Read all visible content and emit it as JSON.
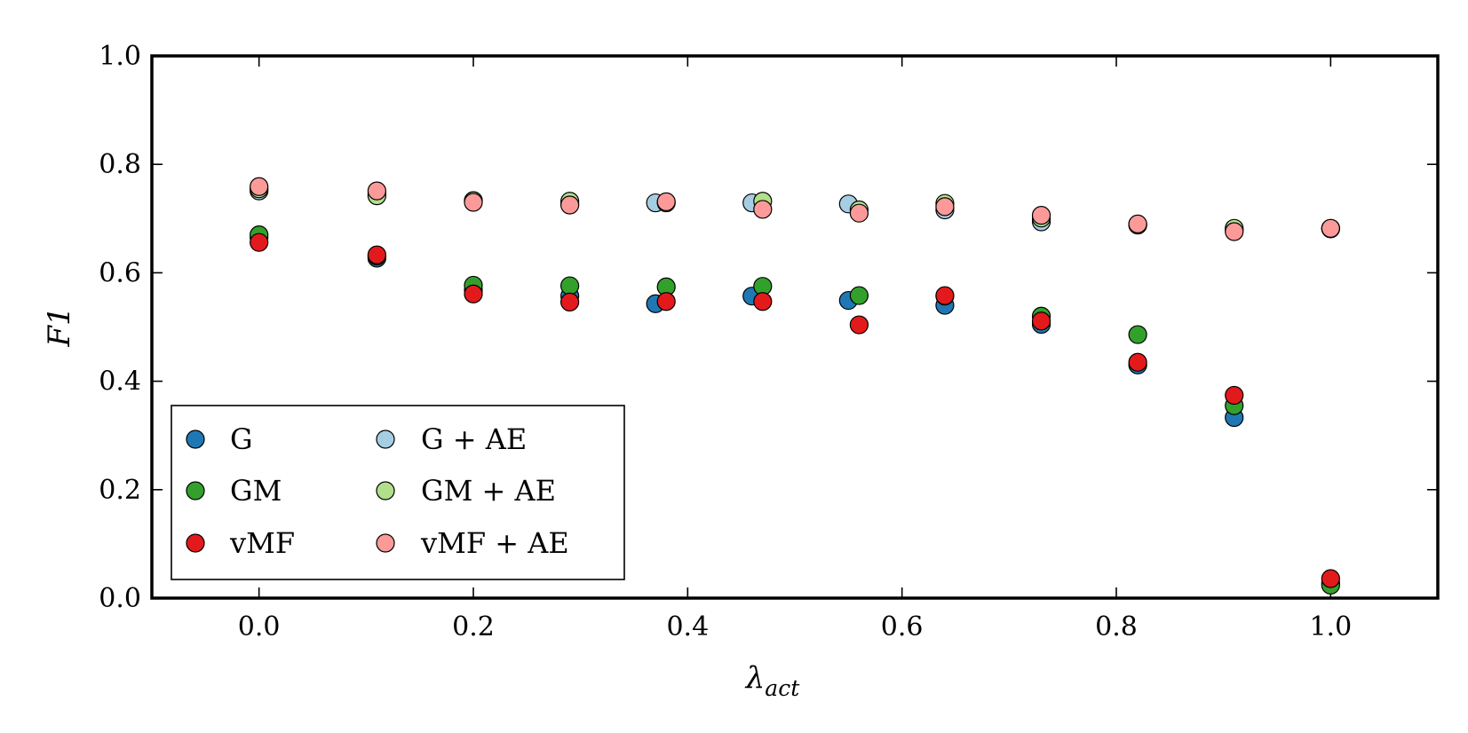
{
  "chart_data": {
    "type": "scatter",
    "xlabel": "λ",
    "xlabel_sub": "act",
    "ylabel": "F1",
    "xlim": [
      -0.1,
      1.1
    ],
    "ylim": [
      0.0,
      1.0
    ],
    "x_ticks": [
      "0.0",
      "0.2",
      "0.4",
      "0.6",
      "0.8",
      "1.0"
    ],
    "y_ticks": [
      "0.0",
      "0.2",
      "0.4",
      "0.6",
      "0.8",
      "1.0"
    ],
    "grid": false,
    "legend_position": "lower-left",
    "series": [
      {
        "name": "G",
        "color": "#1f78b4",
        "x": [
          0.0,
          0.11,
          0.2,
          0.29,
          0.37,
          0.46,
          0.55,
          0.64,
          0.73,
          0.82,
          0.91,
          1.0
        ],
        "y": [
          0.665,
          0.627,
          0.568,
          0.557,
          0.543,
          0.557,
          0.549,
          0.54,
          0.505,
          0.43,
          0.333,
          0.028
        ]
      },
      {
        "name": "GM",
        "color": "#33a02c",
        "x": [
          0.0,
          0.11,
          0.2,
          0.29,
          0.38,
          0.47,
          0.56,
          0.64,
          0.73,
          0.82,
          0.91,
          1.0
        ],
        "y": [
          0.67,
          0.631,
          0.577,
          0.576,
          0.574,
          0.575,
          0.558,
          0.557,
          0.52,
          0.486,
          0.355,
          0.024
        ]
      },
      {
        "name": "vMF",
        "color": "#e31a1c",
        "x": [
          0.0,
          0.11,
          0.2,
          0.29,
          0.38,
          0.47,
          0.56,
          0.64,
          0.73,
          0.82,
          0.91,
          1.0
        ],
        "y": [
          0.656,
          0.633,
          0.561,
          0.546,
          0.547,
          0.547,
          0.504,
          0.558,
          0.511,
          0.435,
          0.374,
          0.036
        ]
      },
      {
        "name": "G + AE",
        "color": "#a6cee3",
        "x": [
          0.0,
          0.11,
          0.2,
          0.29,
          0.37,
          0.46,
          0.55,
          0.64,
          0.73,
          0.82,
          0.91,
          1.0
        ],
        "y": [
          0.751,
          0.746,
          0.733,
          0.727,
          0.729,
          0.729,
          0.727,
          0.716,
          0.694,
          0.688,
          0.679,
          0.681
        ]
      },
      {
        "name": "GM + AE",
        "color": "#b2df8a",
        "x": [
          0.0,
          0.11,
          0.2,
          0.29,
          0.38,
          0.47,
          0.56,
          0.64,
          0.73,
          0.82,
          0.91,
          1.0
        ],
        "y": [
          0.755,
          0.742,
          0.733,
          0.732,
          0.729,
          0.732,
          0.716,
          0.728,
          0.701,
          0.689,
          0.682,
          0.682
        ]
      },
      {
        "name": "vMF + AE",
        "color": "#fb9a99",
        "x": [
          0.0,
          0.11,
          0.2,
          0.29,
          0.38,
          0.47,
          0.56,
          0.64,
          0.73,
          0.82,
          0.91,
          1.0
        ],
        "y": [
          0.759,
          0.751,
          0.73,
          0.725,
          0.731,
          0.717,
          0.71,
          0.722,
          0.706,
          0.69,
          0.676,
          0.682
        ]
      }
    ]
  }
}
